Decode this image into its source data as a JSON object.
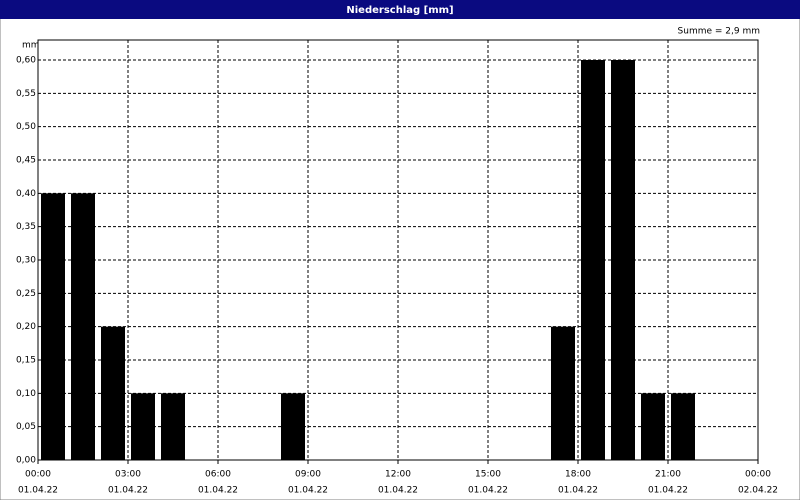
{
  "chart_data": {
    "type": "bar",
    "title": "Niederschlag [mm]",
    "y_label": "mm",
    "annotation": "Summe = 2,9 mm",
    "x": [
      0,
      1,
      2,
      3,
      4,
      8,
      17,
      18,
      19,
      20,
      21
    ],
    "values": [
      0.4,
      0.4,
      0.2,
      0.1,
      0.1,
      0.1,
      0.2,
      0.6,
      0.6,
      0.1,
      0.1
    ],
    "bar_width": 0.8,
    "color": "#000000",
    "xlim": [
      0,
      24
    ],
    "xticks": [
      {
        "value": 0,
        "label": "00:00"
      },
      {
        "value": 3,
        "label": "03:00"
      },
      {
        "value": 6,
        "label": "06:00"
      },
      {
        "value": 9,
        "label": "09:00"
      },
      {
        "value": 12,
        "label": "12:00"
      },
      {
        "value": 15,
        "label": "15:00"
      },
      {
        "value": 18,
        "label": "18:00"
      },
      {
        "value": 21,
        "label": "21:00"
      },
      {
        "value": 24,
        "label": "00:00"
      }
    ],
    "xtick_dates": [
      "01.04.22",
      "01.04.22",
      "01.04.22",
      "01.04.22",
      "01.04.22",
      "01.04.22",
      "01.04.22",
      "01.04.22",
      "02.04.22"
    ],
    "ylim": [
      0,
      0.63
    ],
    "yticks": [
      {
        "value": 0,
        "label": "0,00"
      },
      {
        "value": 0.05,
        "label": "0,05"
      },
      {
        "value": 0.1,
        "label": "0,10"
      },
      {
        "value": 0.15,
        "label": "0,15"
      },
      {
        "value": 0.2,
        "label": "0,20"
      },
      {
        "value": 0.25,
        "label": "0,25"
      },
      {
        "value": 0.3,
        "label": "0,30"
      },
      {
        "value": 0.35,
        "label": "0,35"
      },
      {
        "value": 0.4,
        "label": "0,40"
      },
      {
        "value": 0.45,
        "label": "0,45"
      },
      {
        "value": 0.5,
        "label": "0,50"
      },
      {
        "value": 0.55,
        "label": "0,55"
      },
      {
        "value": 0.6,
        "label": "0,60"
      }
    ],
    "grid": true
  }
}
